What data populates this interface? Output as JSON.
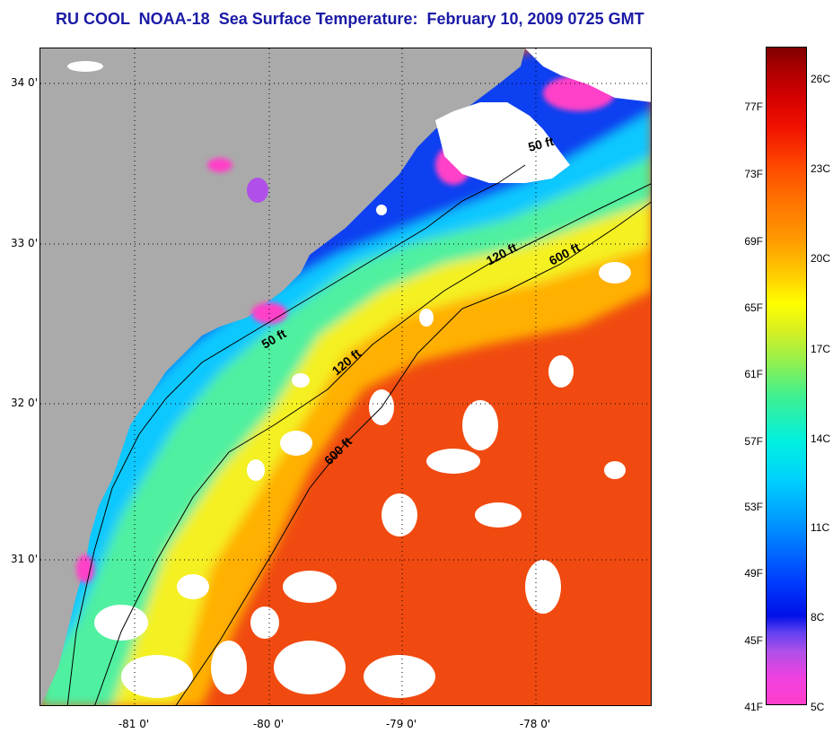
{
  "title": "RU COOL  NOAA-18  Sea Surface Temperature:  February 10, 2009 0725 GMT",
  "map": {
    "lat_ticks": [
      "34 0'",
      "33 0'",
      "32 0'",
      "31 0'"
    ],
    "lon_ticks": [
      "-81 0'",
      "-80 0'",
      "-79 0'",
      "-78 0'"
    ],
    "isobaths": [
      {
        "label": "50 ft"
      },
      {
        "label": "120 ft"
      },
      {
        "label": "600 ft"
      },
      {
        "label": "50 ft"
      },
      {
        "label": "120 ft"
      },
      {
        "label": "600 ft"
      }
    ],
    "colors": {
      "land": "#a9a9a9",
      "cloud": "#ffffff"
    }
  },
  "colorbar": {
    "fahrenheit": [
      "77F",
      "73F",
      "69F",
      "65F",
      "61F",
      "57F",
      "53F",
      "49F",
      "45F",
      "41F"
    ],
    "celsius": [
      "26C",
      "23C",
      "20C",
      "17C",
      "14C",
      "11C",
      "8C",
      "5C"
    ]
  }
}
